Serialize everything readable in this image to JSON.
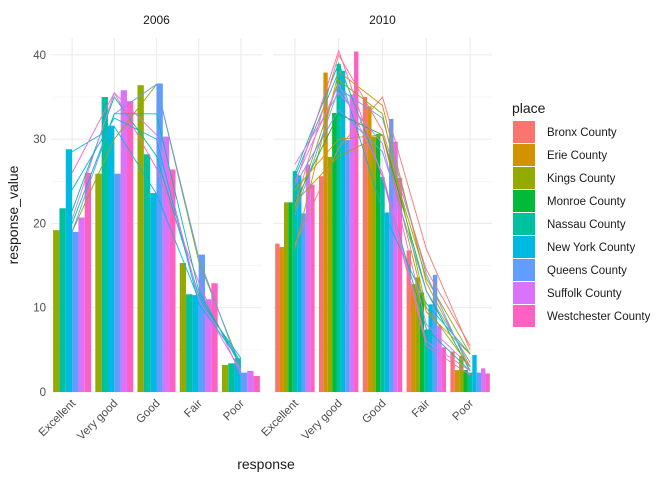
{
  "chart_data": {
    "type": "bar",
    "xlabel": "response",
    "ylabel": "response_value",
    "ylim": [
      0,
      42
    ],
    "yticks": [
      0,
      10,
      20,
      30,
      40
    ],
    "grid": true,
    "legend_title": "place",
    "legend_position": "right",
    "categories": [
      "Excellent",
      "Very good",
      "Good",
      "Fair",
      "Poor"
    ],
    "series": [
      {
        "name": "Bronx County",
        "color": "#F8766D"
      },
      {
        "name": "Erie County",
        "color": "#D39200"
      },
      {
        "name": "Kings County",
        "color": "#93AA00"
      },
      {
        "name": "Monroe County",
        "color": "#00BA38"
      },
      {
        "name": "Nassau County",
        "color": "#00C19F"
      },
      {
        "name": "New York County",
        "color": "#00B9E3"
      },
      {
        "name": "Queens County",
        "color": "#619CFF"
      },
      {
        "name": "Suffolk County",
        "color": "#DB72FB"
      },
      {
        "name": "Westchester County",
        "color": "#FF61C3"
      }
    ],
    "panels": [
      {
        "title": "2006",
        "bars": [
          {
            "series": "Kings County",
            "values": [
              19.2,
              25.9,
              36.4,
              15.3,
              3.2
            ]
          },
          {
            "series": "Nassau County",
            "values": [
              21.8,
              35.0,
              28.2,
              11.6,
              3.4
            ]
          },
          {
            "series": "New York County",
            "values": [
              28.8,
              31.6,
              23.6,
              11.5,
              4.0
            ]
          },
          {
            "series": "Queens County",
            "values": [
              19.0,
              25.9,
              36.6,
              16.3,
              2.3
            ]
          },
          {
            "series": "Suffolk County",
            "values": [
              20.7,
              35.8,
              30.3,
              11.0,
              2.5
            ]
          },
          {
            "series": "Westchester County",
            "values": [
              26.0,
              34.5,
              26.4,
              12.9,
              1.9
            ]
          }
        ],
        "lines": [
          {
            "series": "Kings County",
            "values": [
              19.0,
              30.0,
              36.5,
              15.5,
              3.0
            ]
          },
          {
            "series": "Nassau County",
            "values": [
              21.5,
              35.0,
              28.0,
              11.5,
              3.5
            ]
          },
          {
            "series": "New York County",
            "values": [
              28.5,
              31.5,
              23.5,
              11.0,
              4.0
            ]
          },
          {
            "series": "Queens County",
            "values": [
              19.0,
              33.0,
              36.5,
              16.0,
              2.5
            ]
          },
          {
            "series": "Suffolk County",
            "values": [
              20.5,
              35.5,
              30.5,
              11.0,
              2.5
            ]
          },
          {
            "series": "Westchester County",
            "values": [
              26.0,
              35.5,
              26.5,
              13.0,
              2.0
            ]
          },
          {
            "series": "Nassau County",
            "values": [
              20.0,
              33.0,
              33.0,
              12.0,
              3.0
            ]
          },
          {
            "series": "New York County",
            "values": [
              24.0,
              32.5,
              30.0,
              10.5,
              3.5
            ]
          }
        ]
      },
      {
        "title": "2010",
        "bars": [
          {
            "series": "Bronx County",
            "values": [
              17.6,
              25.6,
              35.0,
              16.8,
              4.8
            ]
          },
          {
            "series": "Erie County",
            "values": [
              17.2,
              37.9,
              33.9,
              12.8,
              2.6
            ]
          },
          {
            "series": "Kings County",
            "values": [
              22.5,
              27.9,
              30.3,
              13.6,
              4.3
            ]
          },
          {
            "series": "Monroe County",
            "values": [
              22.5,
              33.1,
              30.6,
              11.8,
              2.6
            ]
          },
          {
            "series": "Nassau County",
            "values": [
              26.2,
              38.9,
              25.5,
              7.4,
              2.3
            ]
          },
          {
            "series": "New York County",
            "values": [
              25.7,
              38.1,
              21.3,
              10.4,
              4.4
            ]
          },
          {
            "series": "Queens County",
            "values": [
              21.2,
              29.9,
              32.4,
              13.9,
              2.3
            ]
          },
          {
            "series": "Suffolk County",
            "values": [
              27.0,
              35.3,
              29.7,
              7.9,
              2.8
            ]
          },
          {
            "series": "Westchester County",
            "values": [
              24.6,
              40.4,
              25.4,
              5.3,
              2.2
            ]
          }
        ],
        "lines": [
          {
            "series": "Bronx County",
            "values": [
              17.5,
              29.0,
              35.0,
              17.0,
              5.0
            ]
          },
          {
            "series": "Erie County",
            "values": [
              17.0,
              38.0,
              34.0,
              13.0,
              3.0
            ]
          },
          {
            "series": "Kings County",
            "values": [
              22.5,
              28.0,
              30.5,
              13.5,
              4.5
            ]
          },
          {
            "series": "Monroe County",
            "values": [
              22.5,
              33.0,
              30.5,
              12.0,
              2.5
            ]
          },
          {
            "series": "Nassau County",
            "values": [
              26.0,
              39.0,
              25.5,
              7.5,
              2.5
            ]
          },
          {
            "series": "New York County",
            "values": [
              25.5,
              38.0,
              21.5,
              10.5,
              4.5
            ]
          },
          {
            "series": "Queens County",
            "values": [
              21.0,
              36.0,
              32.5,
              14.0,
              2.5
            ]
          },
          {
            "series": "Suffolk County",
            "values": [
              27.0,
              35.5,
              29.5,
              8.0,
              3.0
            ]
          },
          {
            "series": "Westchester County",
            "values": [
              24.5,
              40.5,
              25.5,
              5.5,
              2.0
            ]
          },
          {
            "series": "Bronx County",
            "values": [
              22.0,
              40.0,
              31.0,
              14.5,
              5.5
            ]
          },
          {
            "series": "Erie County",
            "values": [
              24.0,
              30.0,
              30.5,
              9.5,
              4.5
            ]
          },
          {
            "series": "Kings County",
            "values": [
              21.5,
              37.0,
              33.0,
              10.0,
              3.0
            ]
          },
          {
            "series": "Suffolk County",
            "values": [
              25.0,
              36.5,
              26.0,
              6.0,
              2.5
            ]
          },
          {
            "series": "Queens County",
            "values": [
              24.5,
              33.5,
              28.5,
              12.0,
              3.5
            ]
          }
        ]
      }
    ]
  }
}
